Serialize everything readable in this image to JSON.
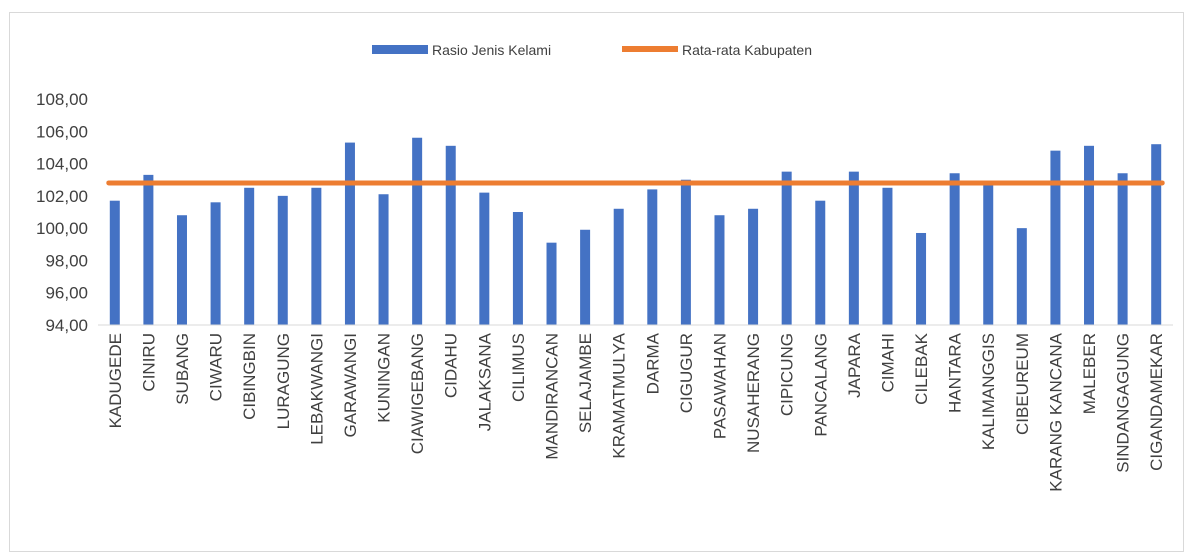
{
  "chart_data": {
    "type": "bar",
    "categories": [
      "KADUGEDE",
      "CINIRU",
      "SUBANG",
      "CIWARU",
      "CIBINGBIN",
      "LURAGUNG",
      "LEBAKWANGI",
      "GARAWANGI",
      "KUNINGAN",
      "CIAWIGEBANG",
      "CIDAHU",
      "JALAKSANA",
      "CILIMUS",
      "MANDIRANCAN",
      "SELAJAMBE",
      "KRAMATMULYA",
      "DARMA",
      "CIGUGUR",
      "PASAWAHAN",
      "NUSAHERANG",
      "CIPICUNG",
      "PANCALANG",
      "JAPARA",
      "CIMAHI",
      "CILEBAK",
      "HANTARA",
      "KALIMANGGIS",
      "CIBEUREUM",
      "KARANG KANCANA",
      "MALEBER",
      "SINDANGAGUNG",
      "CIGANDAMEKAR"
    ],
    "series": [
      {
        "name": "Rasio Jenis Kelami",
        "type": "bar",
        "color": "#4472c4",
        "values": [
          101.7,
          103.3,
          100.8,
          101.6,
          102.5,
          102.0,
          102.5,
          105.3,
          102.1,
          105.6,
          105.1,
          102.2,
          101.0,
          99.1,
          99.9,
          101.2,
          102.4,
          103.0,
          100.8,
          101.2,
          103.5,
          101.7,
          103.5,
          102.5,
          99.7,
          103.4,
          102.8,
          100.0,
          104.8,
          105.1,
          103.4,
          105.2
        ]
      },
      {
        "name": "Rata-rata Kabupaten",
        "type": "line",
        "color": "#ed7d31",
        "value": 102.8
      }
    ],
    "y_ticks": [
      "94,00",
      "96,00",
      "98,00",
      "100,00",
      "102,00",
      "104,00",
      "106,00",
      "108,00"
    ],
    "ylim": [
      94,
      108
    ],
    "y_step": 2,
    "title": "",
    "xlabel": "",
    "ylabel": "",
    "legend_position": "top",
    "grid": false
  }
}
